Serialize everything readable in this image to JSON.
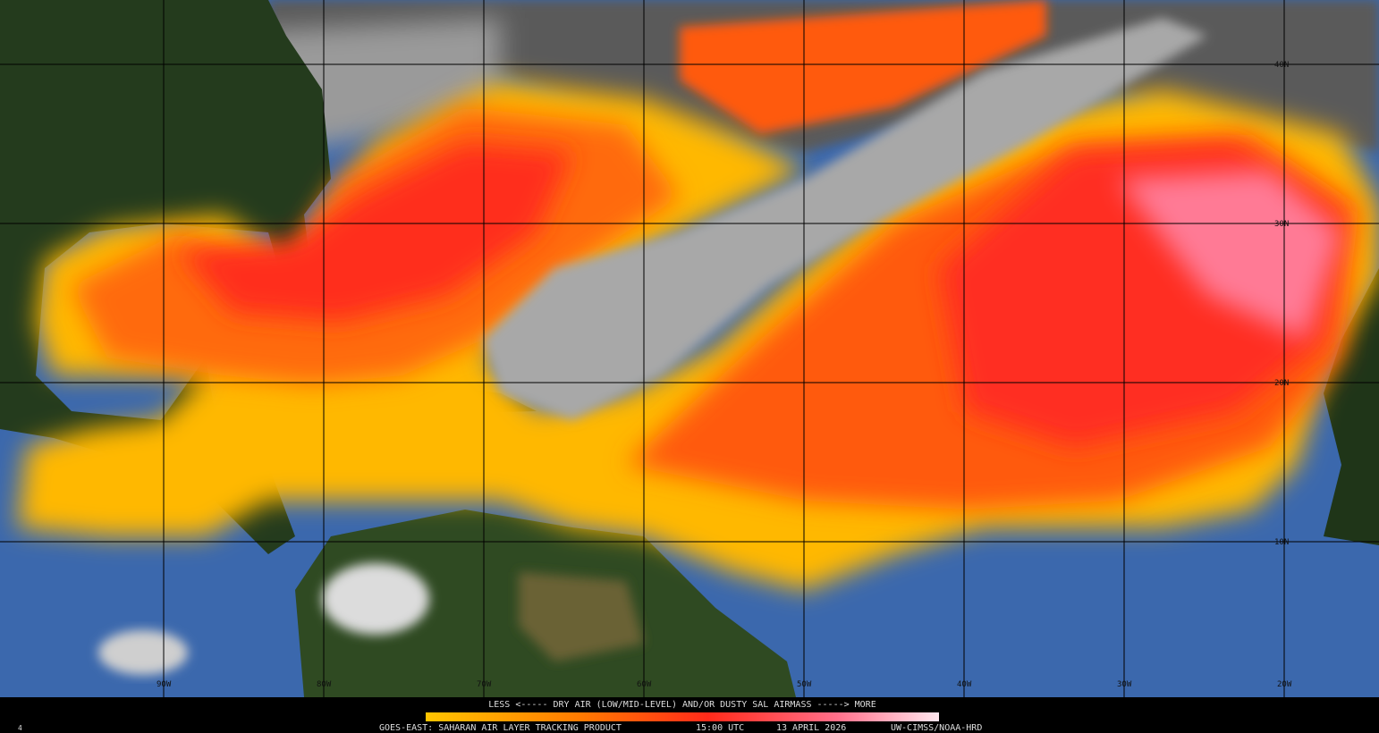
{
  "map": {
    "legend": "LESS <----- DRY AIR (LOW/MID-LEVEL) AND/OR DUSTY SAL AIRMASS -----> MORE",
    "title": "GOES-EAST: SAHARAN AIR LAYER TRACKING PRODUCT",
    "time": "15:00 UTC",
    "date": "13 APRIL 2026",
    "credit": "UW-CIMSS/NOAA-HRD",
    "corner_label": "4",
    "latitude_labels": [
      "40N",
      "30N",
      "20N",
      "10N"
    ],
    "longitude_labels": [
      "90W",
      "80W",
      "70W",
      "60W",
      "50W",
      "40W",
      "30W",
      "20W"
    ]
  }
}
